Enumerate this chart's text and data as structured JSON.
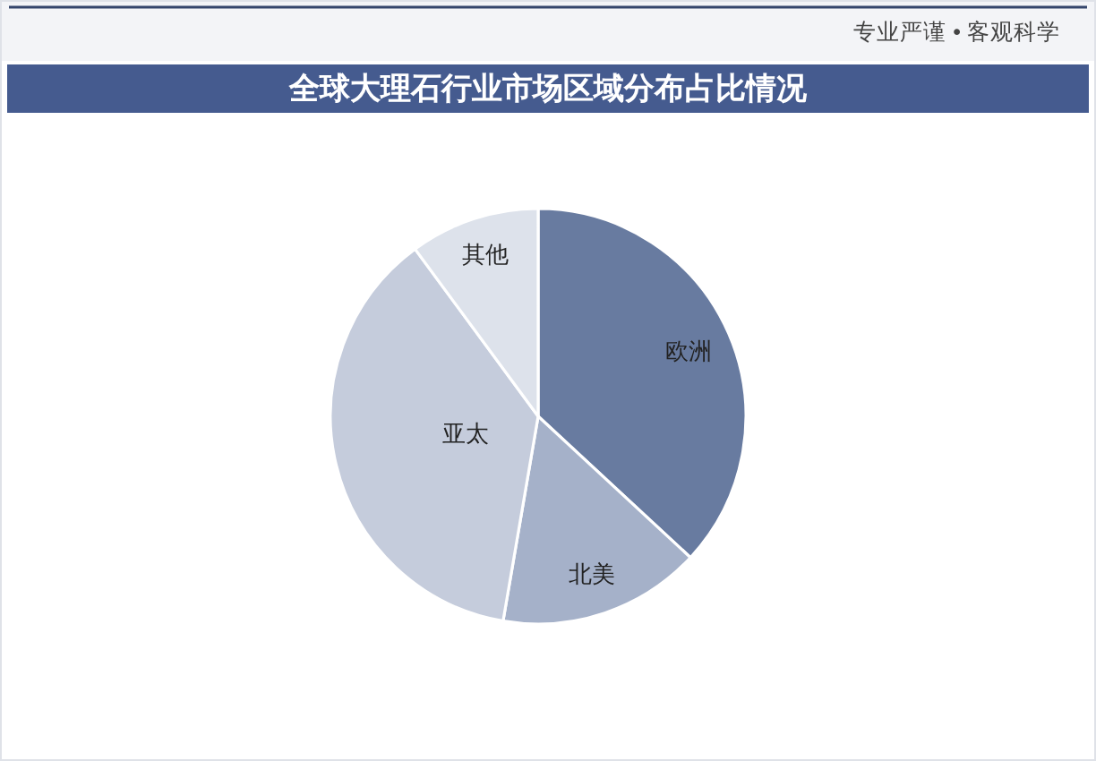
{
  "chart_data": {
    "type": "pie",
    "title": "全球大理石行业市场区域分布占比情况",
    "categories": [
      "欧洲",
      "北美",
      "亚太",
      "其他"
    ],
    "values": [
      36.9,
      15.8,
      37.2,
      10.1
    ],
    "colors": [
      "#687ba0",
      "#a5b1c9",
      "#c5ccdc",
      "#dde2eb"
    ],
    "annotations": [
      "专业严谨 • 客观科学"
    ]
  }
}
